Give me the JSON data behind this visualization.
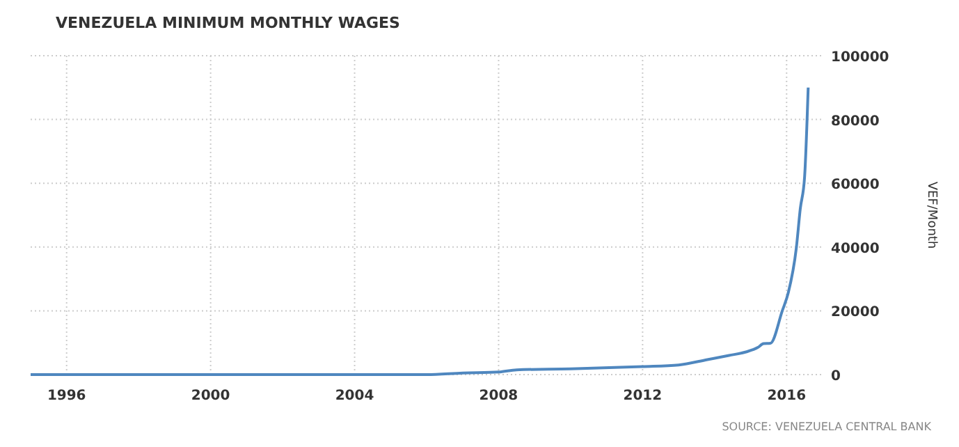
{
  "chart_data": {
    "type": "line",
    "title": "VENEZUELA MINIMUM MONTHLY WAGES",
    "ylabel": "VEF/Month",
    "annotations": [
      "SOURCE: VENEZUELA CENTRAL BANK"
    ],
    "x": [
      1995,
      1997,
      2000,
      2002,
      2004,
      2006,
      2007,
      2008,
      2008.5,
      2010,
      2012,
      2013,
      2013.8,
      2014.4,
      2014.87,
      2015.2,
      2015.36,
      2015.55,
      2015.88,
      2016.05,
      2016.27,
      2016.38,
      2016.5,
      2016.6
    ],
    "series": [
      {
        "color": "#4f87bf",
        "values": [
          0,
          0,
          0,
          0,
          0,
          0,
          500,
          800,
          1500,
          1800,
          2500,
          3000,
          4700,
          6000,
          7100,
          8500,
          9700,
          9800,
          20000,
          25800,
          39700,
          52000,
          62000,
          90000
        ]
      }
    ],
    "xlim": [
      1995,
      2017
    ],
    "xticks": [
      1996,
      2000,
      2004,
      2008,
      2012,
      2016
    ],
    "ylim": [
      0,
      100000
    ],
    "yticks": [
      0,
      20000,
      40000,
      60000,
      80000,
      100000
    ],
    "grid": true,
    "line_style": "solid"
  }
}
